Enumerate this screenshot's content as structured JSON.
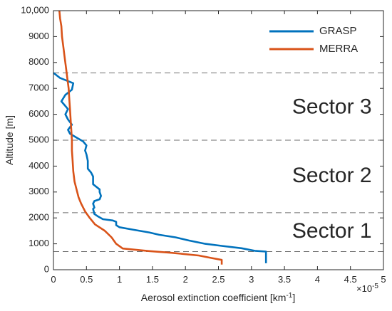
{
  "chart_data": {
    "type": "line",
    "xlabel": "Aerosol extinction coefficient [km",
    "xlabel_superscript": "-1",
    "xlabel_suffix": "]",
    "x_multiplier": "×10",
    "x_multiplier_exponent": "-5",
    "ylabel": "Altitude [m]",
    "xlim": [
      0,
      5
    ],
    "ylim": [
      0,
      10000
    ],
    "x_ticks": [
      0,
      0.5,
      1,
      1.5,
      2,
      2.5,
      3,
      3.5,
      4,
      4.5,
      5
    ],
    "x_tick_labels": [
      "0",
      "0.5",
      "1",
      "1.5",
      "2",
      "2.5",
      "3",
      "3.5",
      "4",
      "4.5",
      "5"
    ],
    "y_ticks": [
      0,
      1000,
      2000,
      3000,
      4000,
      5000,
      6000,
      7000,
      8000,
      9000,
      10000
    ],
    "y_tick_labels": [
      "0",
      "1000",
      "2000",
      "3000",
      "4000",
      "5000",
      "6000",
      "7000",
      "8000",
      "9000",
      "10,000"
    ],
    "grid": false,
    "legend_position": "top-right",
    "series": [
      {
        "name": "GRASP",
        "color": "#0072BD",
        "points": [
          [
            3.22,
            250
          ],
          [
            3.22,
            700
          ],
          [
            3.05,
            730
          ],
          [
            2.85,
            830
          ],
          [
            2.55,
            920
          ],
          [
            2.3,
            1000
          ],
          [
            2.05,
            1130
          ],
          [
            1.85,
            1250
          ],
          [
            1.6,
            1350
          ],
          [
            1.45,
            1440
          ],
          [
            1.2,
            1550
          ],
          [
            1.0,
            1640
          ],
          [
            0.95,
            1720
          ],
          [
            0.95,
            1850
          ],
          [
            0.9,
            1900
          ],
          [
            0.75,
            1950
          ],
          [
            0.68,
            2050
          ],
          [
            0.62,
            2150
          ],
          [
            0.6,
            2350
          ],
          [
            0.62,
            2400
          ],
          [
            0.6,
            2550
          ],
          [
            0.62,
            2650
          ],
          [
            0.7,
            2720
          ],
          [
            0.72,
            2850
          ],
          [
            0.7,
            3000
          ],
          [
            0.7,
            3100
          ],
          [
            0.6,
            3300
          ],
          [
            0.6,
            3450
          ],
          [
            0.6,
            3600
          ],
          [
            0.57,
            3750
          ],
          [
            0.52,
            3900
          ],
          [
            0.52,
            4200
          ],
          [
            0.5,
            4450
          ],
          [
            0.48,
            4600
          ],
          [
            0.5,
            4800
          ],
          [
            0.45,
            4950
          ],
          [
            0.35,
            5100
          ],
          [
            0.25,
            5250
          ],
          [
            0.22,
            5400
          ],
          [
            0.28,
            5600
          ],
          [
            0.22,
            5800
          ],
          [
            0.18,
            6000
          ],
          [
            0.22,
            6200
          ],
          [
            0.12,
            6500
          ],
          [
            0.18,
            6750
          ],
          [
            0.28,
            6950
          ],
          [
            0.3,
            7200
          ],
          [
            0.1,
            7400
          ],
          [
            0.0,
            7600
          ]
        ]
      },
      {
        "name": "MERRA",
        "color": "#D95319",
        "points": [
          [
            2.55,
            200
          ],
          [
            2.55,
            380
          ],
          [
            2.4,
            450
          ],
          [
            2.2,
            550
          ],
          [
            1.8,
            650
          ],
          [
            1.45,
            720
          ],
          [
            1.05,
            820
          ],
          [
            0.95,
            1000
          ],
          [
            0.88,
            1250
          ],
          [
            0.78,
            1500
          ],
          [
            0.63,
            1750
          ],
          [
            0.55,
            2000
          ],
          [
            0.48,
            2250
          ],
          [
            0.42,
            2550
          ],
          [
            0.38,
            2800
          ],
          [
            0.35,
            3100
          ],
          [
            0.32,
            3400
          ],
          [
            0.3,
            3800
          ],
          [
            0.29,
            4200
          ],
          [
            0.28,
            4600
          ],
          [
            0.28,
            5000
          ],
          [
            0.27,
            5400
          ],
          [
            0.26,
            5800
          ],
          [
            0.25,
            6200
          ],
          [
            0.24,
            6600
          ],
          [
            0.23,
            7000
          ],
          [
            0.21,
            7400
          ],
          [
            0.19,
            7800
          ],
          [
            0.17,
            8200
          ],
          [
            0.15,
            8600
          ],
          [
            0.13,
            9000
          ],
          [
            0.12,
            9400
          ],
          [
            0.1,
            9700
          ],
          [
            0.09,
            10000
          ]
        ]
      }
    ],
    "reference_lines": [
      {
        "y": 700,
        "style": "dashed"
      },
      {
        "y": 2200,
        "style": "dashed"
      },
      {
        "y": 5000,
        "style": "dashed"
      },
      {
        "y": 7600,
        "style": "dashed"
      }
    ],
    "annotations": [
      {
        "text": "Sector 3",
        "x": 4.22,
        "y": 6250
      },
      {
        "text": "Sector 2",
        "x": 4.22,
        "y": 3600
      },
      {
        "text": "Sector 1",
        "x": 4.22,
        "y": 1450
      }
    ]
  }
}
